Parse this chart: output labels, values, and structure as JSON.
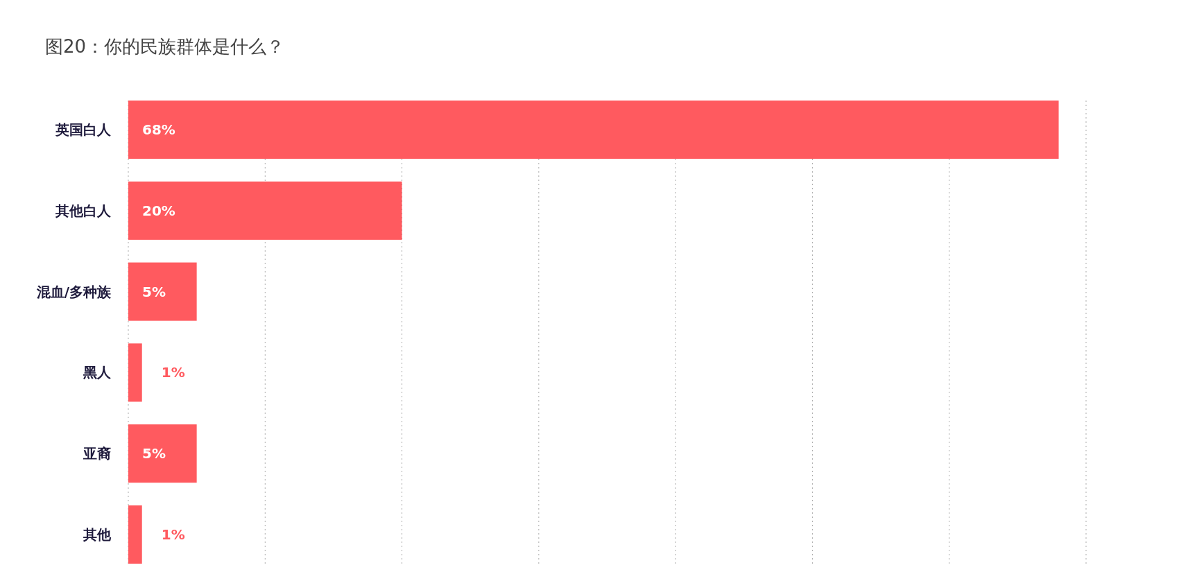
{
  "chart_data": {
    "type": "bar",
    "orientation": "horizontal",
    "title": "图20：你的民族群体是什么？",
    "categories": [
      "英国白人",
      "其他白人",
      "混血/多种族",
      "黑人",
      "亚裔",
      "其他"
    ],
    "values": [
      68,
      20,
      5,
      1,
      5,
      1
    ],
    "value_labels": [
      "68%",
      "20%",
      "5%",
      "1%",
      "5%",
      "1%"
    ],
    "color": "#ff5a5f",
    "xlim": [
      0,
      70
    ],
    "xticks": [
      {
        "value": 0,
        "label": null
      },
      {
        "value": 10,
        "label": null
      },
      {
        "value": 20,
        "label": null
      },
      {
        "value": 30,
        "label": null
      },
      {
        "value": 40,
        "label": null
      },
      {
        "value": 50,
        "label": null
      },
      {
        "value": 60,
        "label": null
      },
      {
        "value": 70,
        "label": null
      }
    ],
    "grid": "x",
    "tick_labels": "y"
  }
}
